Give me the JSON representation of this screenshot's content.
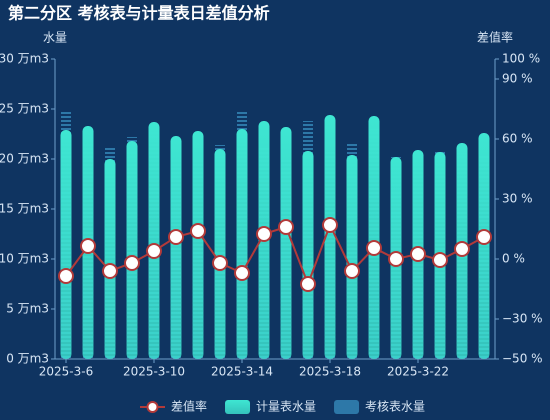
{
  "chart_data": {
    "type": "bar-line",
    "title": "第二分区 考核表与计量表日差值分析",
    "y_label": "水量",
    "y2_label": "差值率",
    "categories": [
      "2025-3-6",
      null,
      null,
      null,
      "2025-3-10",
      null,
      null,
      null,
      "2025-3-14",
      null,
      null,
      null,
      "2025-3-18",
      null,
      null,
      null,
      "2025-3-22",
      null,
      null,
      null
    ],
    "ylim": [
      0,
      30
    ],
    "yticks": [
      {
        "value": 0,
        "label": "0 万m3"
      },
      {
        "value": 5,
        "label": "5 万m3"
      },
      {
        "value": 10,
        "label": "10 万m3"
      },
      {
        "value": 15,
        "label": "15 万m3"
      },
      {
        "value": 20,
        "label": "20 万m3"
      },
      {
        "value": 25,
        "label": "25 万m3"
      },
      {
        "value": 30,
        "label": "30 万m3"
      }
    ],
    "y2lim": [
      -50,
      100
    ],
    "y2ticks": [
      {
        "value": -50,
        "label": "−50 %"
      },
      {
        "value": -30,
        "label": "−30 %"
      },
      {
        "value": 0,
        "label": "0 %"
      },
      {
        "value": 30,
        "label": "30 %"
      },
      {
        "value": 60,
        "label": "60 %"
      },
      {
        "value": 90,
        "label": "90 %"
      },
      {
        "value": 100,
        "label": "100 %"
      }
    ],
    "grid": false,
    "legend": "bottom",
    "series": [
      {
        "name": "差值率",
        "type": "line",
        "axis": "y2",
        "color": "#b23a3a",
        "values": [
          -8.5,
          6.5,
          -6,
          -2,
          4,
          11,
          14,
          -2,
          -7,
          12.5,
          16,
          -12.5,
          17,
          -6,
          5.5,
          0,
          2.5,
          -0.5,
          5,
          11
        ]
      },
      {
        "name": "计量表水量",
        "type": "bar",
        "color": "#3ee6d2",
        "values": [
          22.9,
          23.3,
          20.0,
          21.8,
          23.7,
          22.3,
          22.8,
          21.0,
          23.0,
          23.8,
          23.2,
          20.8,
          24.4,
          20.4,
          24.3,
          20.2,
          20.9,
          20.7,
          21.6,
          22.6
        ]
      },
      {
        "name": "考核表水量",
        "type": "dashbar",
        "color": "#2d78a8",
        "values": [
          24.9,
          21.9,
          21.3,
          22.2,
          22.8,
          20.1,
          20.0,
          21.4,
          24.7,
          21.2,
          20.0,
          23.8,
          20.9,
          21.7,
          23.0,
          20.2,
          20.4,
          20.8,
          20.6,
          20.4
        ]
      }
    ]
  }
}
